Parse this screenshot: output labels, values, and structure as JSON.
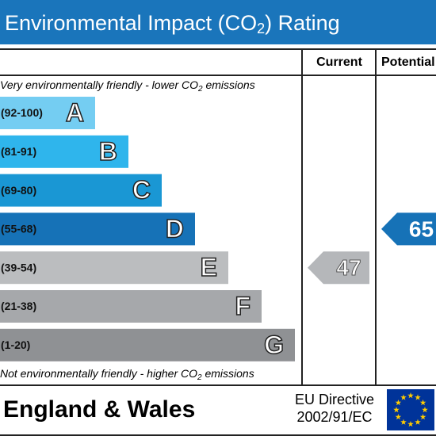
{
  "title": {
    "text": "Environmental Impact (CO",
    "sub": "2",
    "tail": ") Rating"
  },
  "columns": {
    "current": "Current",
    "potential": "Potential"
  },
  "top_note": {
    "text": "Very environmentally friendly - lower CO",
    "sub": "2",
    "tail": " emissions"
  },
  "bottom_note": {
    "text": "Not environmentally friendly - higher CO",
    "sub": "2",
    "tail": " emissions"
  },
  "bands": [
    {
      "range": "(92-100)",
      "letter": "A",
      "color": "#74cdf2"
    },
    {
      "range": "(81-91)",
      "letter": "B",
      "color": "#2fb5ec"
    },
    {
      "range": "(69-80)",
      "letter": "C",
      "color": "#1a97d4"
    },
    {
      "range": "(55-68)",
      "letter": "D",
      "color": "#1672b7"
    },
    {
      "range": "(39-54)",
      "letter": "E",
      "color": "#bbbdbf"
    },
    {
      "range": "(21-38)",
      "letter": "F",
      "color": "#a6a8ab"
    },
    {
      "range": "(1-20)",
      "letter": "G",
      "color": "#8f9194"
    }
  ],
  "current": {
    "value": 47,
    "color": "#b5b7ba"
  },
  "potential": {
    "value": 65,
    "color": "#1672b7"
  },
  "footer": {
    "region": "England & Wales",
    "directive_line1": "EU Directive",
    "directive_line2": "2002/91/EC"
  }
}
